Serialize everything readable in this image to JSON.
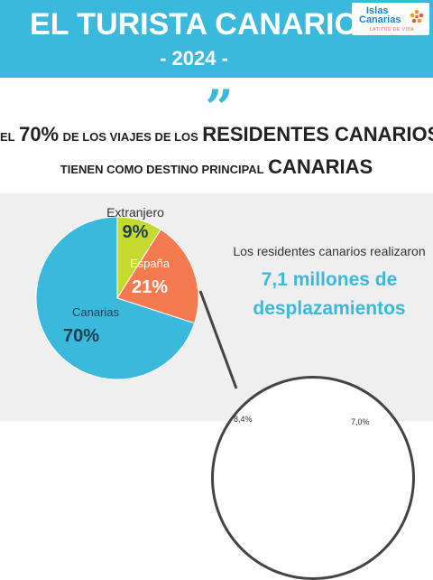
{
  "header": {
    "title": "EL TURISTA CANARIO",
    "year": "- 2024 -"
  },
  "logo": {
    "line1": "Islas",
    "line2": "Canarias",
    "tagline": "LATITUD DE VIDA"
  },
  "quote_mark": "”",
  "headline": {
    "l1_a": "EL",
    "l1_b": "70%",
    "l1_c": "DE LOS VIAJES DE LOS",
    "l1_d": "RESIDENTES CANARIOS",
    "l2_a": "TIENEN COMO DESTINO PRINCIPAL",
    "l2_b": "CANARIAS"
  },
  "side": {
    "text": "Los residentes canarios realizaron",
    "big1": "7,1 millones de",
    "big2": "desplazamientos"
  },
  "zoom_labels": [
    "8,4%",
    "7,0%"
  ],
  "colors": {
    "header": "#3bb9dc",
    "canarias": "#3bb9dc",
    "espana": "#f47a50",
    "extranjero": "#c5d92f"
  },
  "chart_data": {
    "type": "pie",
    "title": "",
    "slices": [
      {
        "label": "Canarias",
        "value": 70,
        "display": "70%",
        "color": "#3bb9dc"
      },
      {
        "label": "España",
        "value": 21,
        "display": "21%",
        "color": "#f47a50"
      },
      {
        "label": "Extranjero",
        "value": 9,
        "display": "9%",
        "color": "#c5d92f"
      }
    ]
  }
}
